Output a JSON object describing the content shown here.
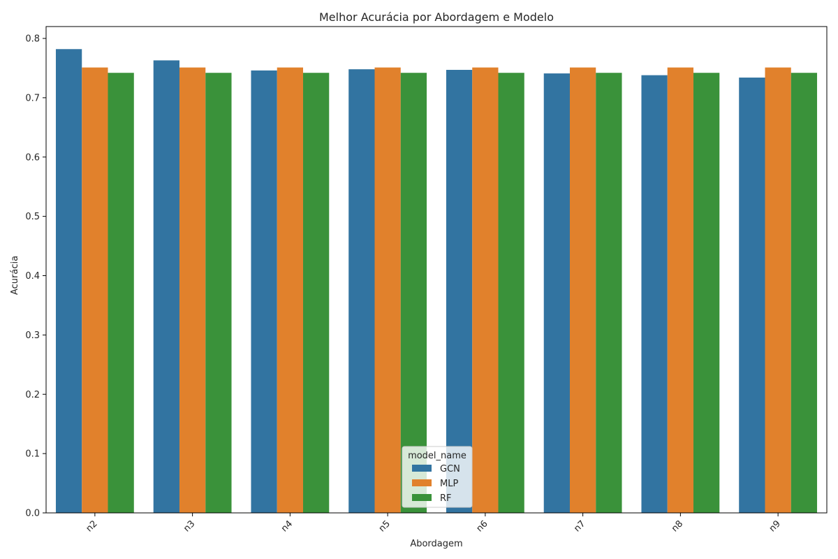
{
  "chart_data": {
    "type": "bar",
    "title": "Melhor Acurácia por Abordagem e Modelo",
    "xlabel": "Abordagem",
    "ylabel": "Acurácia",
    "categories": [
      "n2",
      "n3",
      "n4",
      "n5",
      "n6",
      "n7",
      "n8",
      "n9"
    ],
    "series": [
      {
        "name": "GCN",
        "color": "#3274a1",
        "values": [
          0.782,
          0.763,
          0.746,
          0.748,
          0.747,
          0.741,
          0.738,
          0.734
        ]
      },
      {
        "name": "MLP",
        "color": "#e1812c",
        "values": [
          0.751,
          0.751,
          0.751,
          0.751,
          0.751,
          0.751,
          0.751,
          0.751
        ]
      },
      {
        "name": "RF",
        "color": "#3a923a",
        "values": [
          0.742,
          0.742,
          0.742,
          0.742,
          0.742,
          0.742,
          0.742,
          0.742
        ]
      }
    ],
    "ylim": [
      0,
      0.8
    ],
    "yticks": [
      "0.0",
      "0.1",
      "0.2",
      "0.3",
      "0.4",
      "0.5",
      "0.6",
      "0.7",
      "0.8"
    ],
    "legend": {
      "title": "model_name",
      "position": "bottom-center"
    },
    "grid": false
  }
}
